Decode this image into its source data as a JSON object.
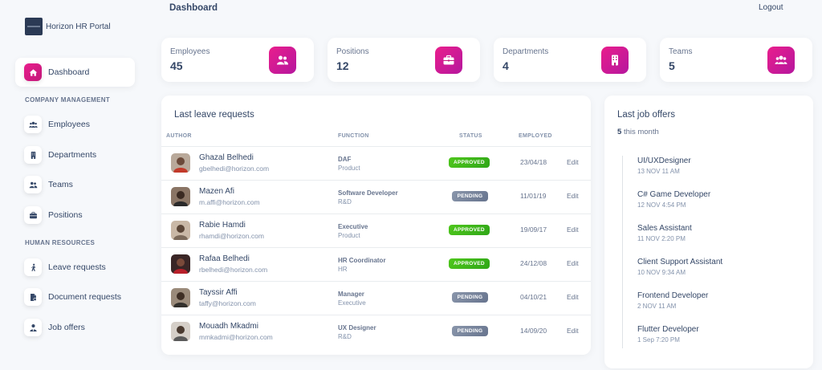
{
  "app": {
    "name": "Horizon HR Portal"
  },
  "header": {
    "title": "Dashboard",
    "logout_label": "Logout"
  },
  "sidebar": {
    "active": {
      "label": "Dashboard",
      "icon": "home-icon"
    },
    "sections": [
      {
        "title": "COMPANY MANAGEMENT",
        "items": [
          {
            "label": "Employees",
            "icon": "users-icon"
          },
          {
            "label": "Departments",
            "icon": "building-icon"
          },
          {
            "label": "Teams",
            "icon": "team-icon"
          },
          {
            "label": "Positions",
            "icon": "briefcase-icon"
          }
        ]
      },
      {
        "title": "HUMAN RESOURCES",
        "items": [
          {
            "label": "Leave requests",
            "icon": "walking-icon"
          },
          {
            "label": "Document requests",
            "icon": "document-icon"
          },
          {
            "label": "Job offers",
            "icon": "person-tie-icon"
          }
        ]
      }
    ]
  },
  "stats": [
    {
      "label": "Employees",
      "value": "45",
      "icon": "users-icon"
    },
    {
      "label": "Positions",
      "value": "12",
      "icon": "briefcase-icon"
    },
    {
      "label": "Departments",
      "value": "4",
      "icon": "building-icon"
    },
    {
      "label": "Teams",
      "value": "5",
      "icon": "team-icon"
    }
  ],
  "leave_requests": {
    "title": "Last leave requests",
    "columns": {
      "author": "AUTHOR",
      "function": "FUNCTION",
      "status": "STATUS",
      "employed": "EMPLOYED"
    },
    "rows": [
      {
        "name": "Ghazal Belhedi",
        "email": "gbelhedi@horizon.com",
        "function": "DAF",
        "department": "Product",
        "status": "APPROVED",
        "employed": "23/04/18",
        "action": "Edit"
      },
      {
        "name": "Mazen Afi",
        "email": "m.affi@horizon.com",
        "function": "Software Developer",
        "department": "R&D",
        "status": "PENDING",
        "employed": "11/01/19",
        "action": "Edit"
      },
      {
        "name": "Rabie Hamdi",
        "email": "rhamdi@horizon.com",
        "function": "Executive",
        "department": "Product",
        "status": "APPROVED",
        "employed": "19/09/17",
        "action": "Edit"
      },
      {
        "name": "Rafaa Belhedi",
        "email": "rbelhedi@horizon.com",
        "function": "HR Coordinator",
        "department": "HR",
        "status": "APPROVED",
        "employed": "24/12/08",
        "action": "Edit"
      },
      {
        "name": "Tayssir Affi",
        "email": "taffy@horizon.com",
        "function": "Manager",
        "department": "Executive",
        "status": "PENDING",
        "employed": "04/10/21",
        "action": "Edit"
      },
      {
        "name": "Mouadh Mkadmi",
        "email": "mmkadmi@horizon.com",
        "function": "UX Designer",
        "department": "R&D",
        "status": "PENDING",
        "employed": "14/09/20",
        "action": "Edit"
      }
    ]
  },
  "job_offers": {
    "title": "Last job offers",
    "count": "5",
    "count_suffix": "this month",
    "items": [
      {
        "title": "UI/UXDesigner",
        "date": "13 NOV 11 AM"
      },
      {
        "title": "C# Game Developer",
        "date": "12 NOV 4:54 PM"
      },
      {
        "title": "Sales Assistant",
        "date": "11 NOV 2:20 PM"
      },
      {
        "title": "Client Support Assistant",
        "date": "10 NOV 9:34 AM"
      },
      {
        "title": "Frontend Developer",
        "date": "2 NOV 11 AM"
      },
      {
        "title": "Flutter Developer",
        "date": "1 Sep 7:20 PM"
      }
    ]
  },
  "colors": {
    "accent": "#e91e8c",
    "approved": "#3cb81a",
    "pending": "#7b869c",
    "text": "#344767"
  }
}
